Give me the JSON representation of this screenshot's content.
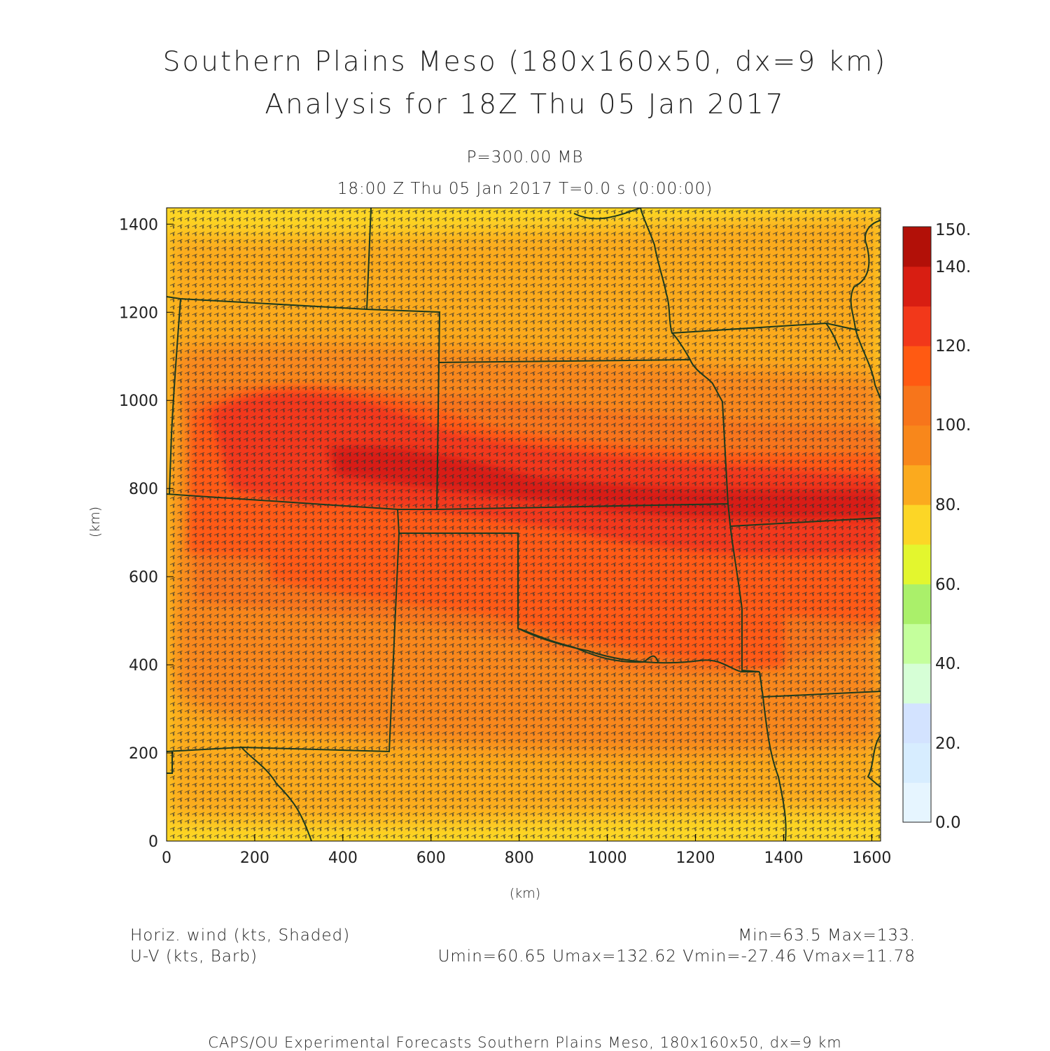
{
  "title": {
    "line1": "Southern Plains Meso (180x160x50, dx=9 km)",
    "line2": "Analysis for 18Z Thu 05 Jan 2017"
  },
  "subtitle": {
    "level": "P=300.00 MB",
    "time": "18:00 Z Thu 05 Jan 2017    T=0.0 s (0:00:00)"
  },
  "axes": {
    "xlabel": "(km)",
    "ylabel": "(km)",
    "xticks": [
      "0",
      "200",
      "400",
      "600",
      "800",
      "1000",
      "1200",
      "1400",
      "1600"
    ],
    "yticks": [
      "0",
      "200",
      "400",
      "600",
      "800",
      "1000",
      "1200",
      "1400"
    ]
  },
  "colorbar": {
    "labels": [
      "150.",
      "140.",
      "120.",
      "100.",
      "80.",
      "60.",
      "40.",
      "20.",
      "0.0"
    ],
    "colors": [
      "#e6f5ff",
      "#d7edff",
      "#d3e3ff",
      "#d6ffd6",
      "#c4ff9c",
      "#aaf06a",
      "#e3f62e",
      "#fcd626",
      "#fbaa1e",
      "#f8871b",
      "#f7751b",
      "#ff5a12",
      "#f2381a",
      "#d81e12",
      "#b21008"
    ]
  },
  "legend": {
    "shaded": "Horiz. wind (kts, Shaded)",
    "barb": "U-V (kts, Barb)",
    "minmax": "Min=63.5 Max=133.",
    "uv_stats": "Umin=60.65 Umax=132.62 Vmin=-27.46 Vmax=11.78"
  },
  "footer": "CAPS/OU Experimental Forecasts  Southern Plains Meso, 180x160x50, dx=9 km",
  "map_colors": {
    "background_field": "#fbaa1e",
    "boundary": "#1e3a1e",
    "barb": "#333333"
  }
}
